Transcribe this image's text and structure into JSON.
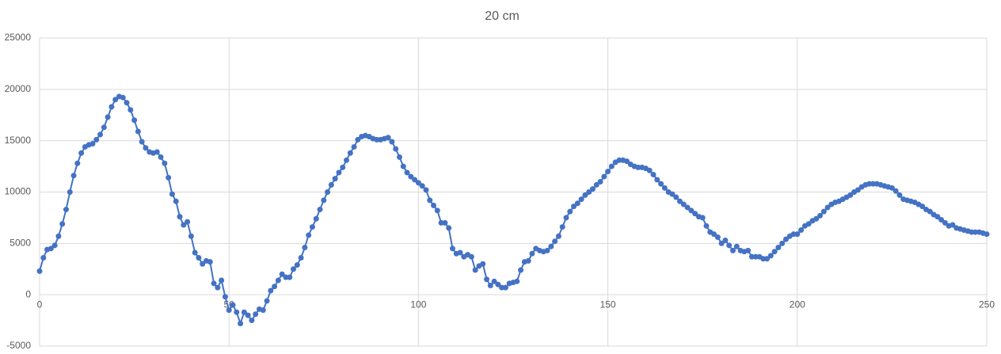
{
  "chart_data": {
    "type": "line",
    "title": "20 cm",
    "color": "#4472c4",
    "grid": true,
    "x": [
      0,
      1,
      2,
      3,
      4,
      5,
      6,
      7,
      8,
      9,
      10,
      11,
      12,
      13,
      14,
      15,
      16,
      17,
      18,
      19,
      20,
      21,
      22,
      23,
      24,
      25,
      26,
      27,
      28,
      29,
      30,
      31,
      32,
      33,
      34,
      35,
      36,
      37,
      38,
      39,
      40,
      41,
      42,
      43,
      44,
      45,
      46,
      47,
      48,
      49,
      50,
      51,
      52,
      53,
      54,
      55,
      56,
      57,
      58,
      59,
      60,
      61,
      62,
      63,
      64,
      65,
      66,
      67,
      68,
      69,
      70,
      71,
      72,
      73,
      74,
      75,
      76,
      77,
      78,
      79,
      80,
      81,
      82,
      83,
      84,
      85,
      86,
      87,
      88,
      89,
      90,
      91,
      92,
      93,
      94,
      95,
      96,
      97,
      98,
      99,
      100,
      101,
      102,
      103,
      104,
      105,
      106,
      107,
      108,
      109,
      110,
      111,
      112,
      113,
      114,
      115,
      116,
      117,
      118,
      119,
      120,
      121,
      122,
      123,
      124,
      125,
      126,
      127,
      128,
      129,
      130,
      131,
      132,
      133,
      134,
      135,
      136,
      137,
      138,
      139,
      140,
      141,
      142,
      143,
      144,
      145,
      146,
      147,
      148,
      149,
      150,
      151,
      152,
      153,
      154,
      155,
      156,
      157,
      158,
      159,
      160,
      161,
      162,
      163,
      164,
      165,
      166,
      167,
      168,
      169,
      170,
      171,
      172,
      173,
      174,
      175,
      176,
      177,
      178,
      179,
      180,
      181,
      182,
      183,
      184,
      185,
      186,
      187,
      188,
      189,
      190,
      191,
      192,
      193,
      194,
      195,
      196,
      197,
      198,
      199,
      200,
      201,
      202,
      203,
      204,
      205,
      206,
      207,
      208,
      209,
      210,
      211,
      212,
      213,
      214,
      215,
      216,
      217,
      218,
      219,
      220,
      221,
      222,
      223,
      224,
      225,
      226,
      227,
      228,
      229,
      230,
      231,
      232,
      233,
      234,
      235,
      236,
      237,
      238,
      239,
      240,
      241,
      242,
      243,
      244,
      245,
      246,
      247,
      248,
      249,
      250
    ],
    "values": [
      2300,
      3600,
      4400,
      4500,
      4800,
      5700,
      6900,
      8300,
      10000,
      11600,
      12800,
      13800,
      14400,
      14600,
      14700,
      15100,
      15600,
      16300,
      17300,
      18300,
      19000,
      19300,
      19200,
      18700,
      18000,
      17000,
      15900,
      14900,
      14300,
      13900,
      13800,
      13900,
      13400,
      12800,
      11400,
      9800,
      9100,
      7600,
      6800,
      7100,
      5700,
      4100,
      3600,
      3000,
      3300,
      3200,
      1100,
      700,
      1400,
      -200,
      -1500,
      -1000,
      -1700,
      -2800,
      -1700,
      -2000,
      -2500,
      -1900,
      -1400,
      -1500,
      -600,
      400,
      800,
      1400,
      2000,
      1700,
      1700,
      2500,
      2900,
      3600,
      4600,
      5800,
      6600,
      7400,
      8300,
      9200,
      10000,
      10700,
      11300,
      11900,
      12400,
      13100,
      13800,
      14400,
      15100,
      15400,
      15500,
      15400,
      15200,
      15100,
      15100,
      15200,
      15300,
      14900,
      14200,
      13400,
      12500,
      11900,
      11500,
      11200,
      10900,
      10600,
      10200,
      9200,
      8700,
      8200,
      7000,
      7000,
      6500,
      4500,
      4000,
      4100,
      3700,
      3900,
      3700,
      2400,
      2800,
      3000,
      1500,
      900,
      1300,
      1000,
      700,
      700,
      1100,
      1200,
      1300,
      2400,
      3200,
      3300,
      4000,
      4500,
      4300,
      4200,
      4300,
      4700,
      5200,
      5700,
      6600,
      7500,
      8100,
      8600,
      8900,
      9300,
      9700,
      10000,
      10300,
      10700,
      11000,
      11500,
      12000,
      12500,
      12900,
      13100,
      13100,
      13000,
      12700,
      12500,
      12400,
      12400,
      12300,
      12100,
      11700,
      11200,
      10800,
      10400,
      10000,
      9800,
      9500,
      9100,
      8800,
      8500,
      8200,
      7900,
      7600,
      7500,
      6700,
      6100,
      5900,
      5600,
      5000,
      5300,
      4800,
      4300,
      4700,
      4300,
      4200,
      4300,
      3700,
      3700,
      3700,
      3500,
      3500,
      3800,
      4200,
      4600,
      5000,
      5400,
      5700,
      5900,
      5900,
      6300,
      6700,
      6900,
      7200,
      7400,
      7700,
      8100,
      8500,
      8800,
      9000,
      9100,
      9300,
      9500,
      9700,
      10000,
      10200,
      10500,
      10700,
      10800,
      10800,
      10800,
      10700,
      10600,
      10500,
      10400,
      10100,
      9700,
      9300,
      9200,
      9100,
      9000,
      8800,
      8600,
      8300,
      8100,
      7800,
      7600,
      7300,
      7000,
      6700,
      6800,
      6500,
      6400,
      6300,
      6200,
      6100,
      6100,
      6100,
      6000,
      5900
    ],
    "xlim": [
      0,
      250
    ],
    "xticks": [
      0,
      50,
      100,
      150,
      200,
      250
    ],
    "ylim": [
      -5000,
      25000
    ],
    "yticks": [
      -5000,
      0,
      5000,
      10000,
      15000,
      20000,
      25000
    ]
  }
}
